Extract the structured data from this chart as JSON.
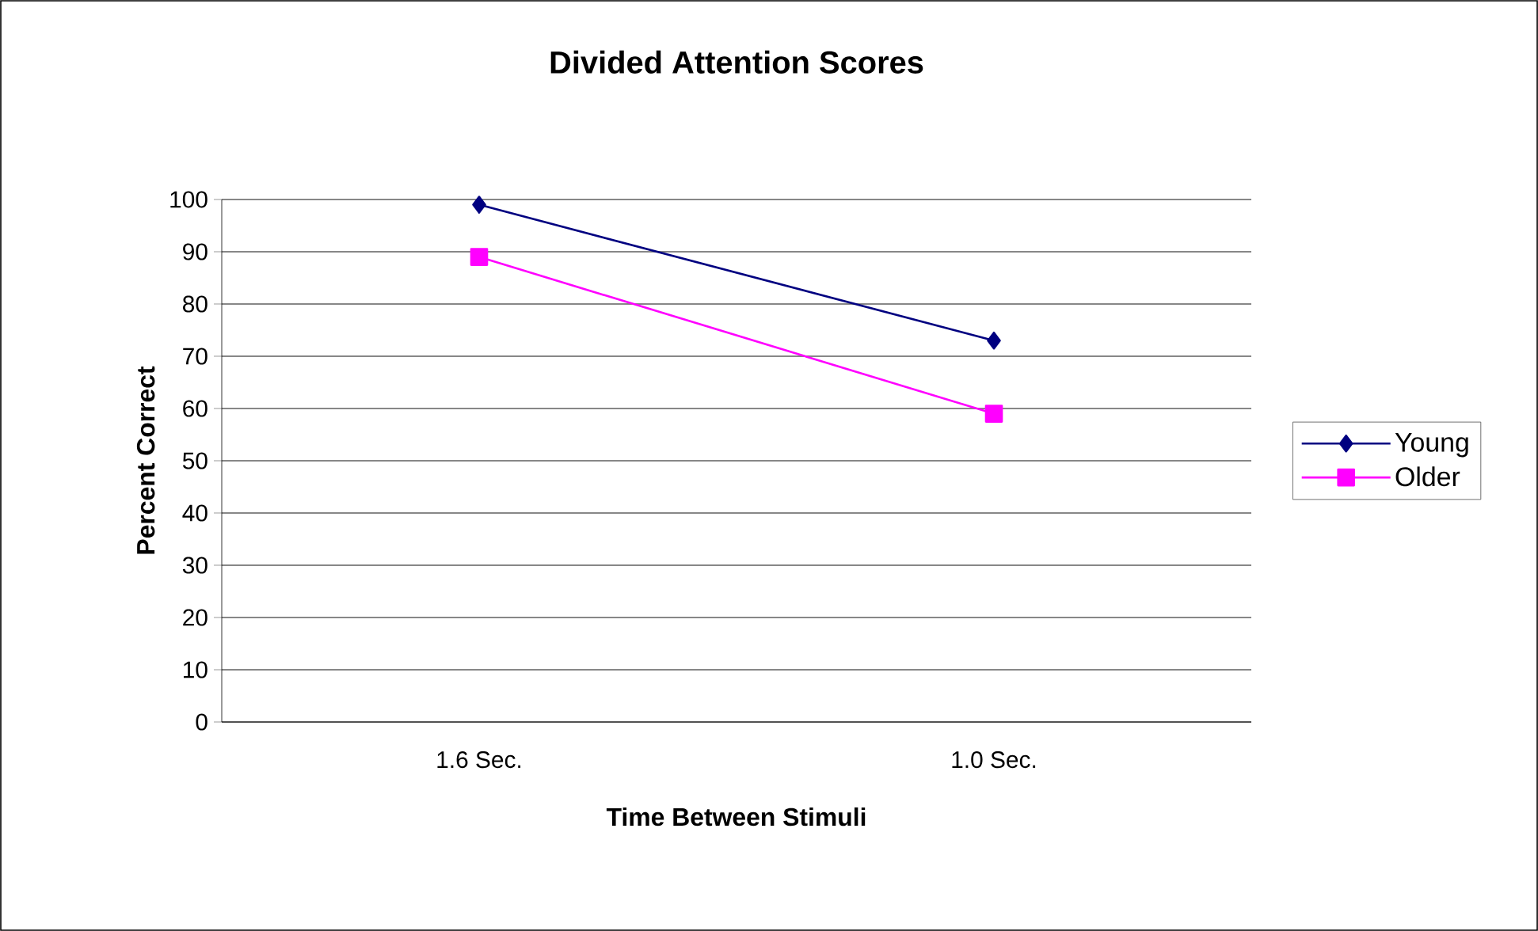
{
  "chart_data": {
    "type": "line",
    "title": "Divided Attention Scores",
    "xlabel": "Time Between Stimuli",
    "ylabel": "Percent Correct",
    "categories": [
      "1.6 Sec.",
      "1.0 Sec."
    ],
    "series": [
      {
        "name": "Young",
        "color": "#000080",
        "marker": "diamond",
        "values": [
          99,
          73
        ]
      },
      {
        "name": "Older",
        "color": "#ff00ff",
        "marker": "square",
        "values": [
          89,
          59
        ]
      }
    ],
    "ylim": [
      0,
      100
    ],
    "yticks": [
      0,
      10,
      20,
      30,
      40,
      50,
      60,
      70,
      80,
      90,
      100
    ],
    "grid": "y",
    "legend": "right",
    "line_style": "solid"
  }
}
